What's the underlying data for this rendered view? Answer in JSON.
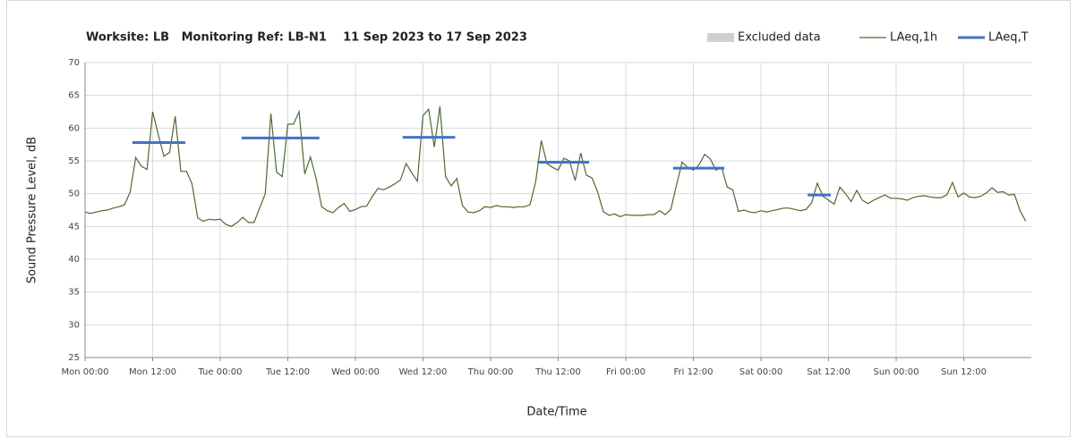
{
  "chart_data": {
    "type": "line",
    "title": "Worksite: LB   Monitoring Ref: LB-N1    11 Sep 2023 to 17 Sep 2023",
    "xlabel": "Date/Time",
    "ylabel": "Sound Pressure Level, dB",
    "xlim": [
      0,
      168
    ],
    "xticks": [
      {
        "value": 0,
        "label": "Mon 00:00"
      },
      {
        "value": 12,
        "label": "Mon 12:00"
      },
      {
        "value": 24,
        "label": "Tue 00:00"
      },
      {
        "value": 36,
        "label": "Tue 12:00"
      },
      {
        "value": 48,
        "label": "Wed 00:00"
      },
      {
        "value": 60,
        "label": "Wed 12:00"
      },
      {
        "value": 72,
        "label": "Thu 00:00"
      },
      {
        "value": 84,
        "label": "Thu 12:00"
      },
      {
        "value": 96,
        "label": "Fri 00:00"
      },
      {
        "value": 108,
        "label": "Fri 12:00"
      },
      {
        "value": 120,
        "label": "Sat 00:00"
      },
      {
        "value": 132,
        "label": "Sat 12:00"
      },
      {
        "value": 144,
        "label": "Sun 00:00"
      },
      {
        "value": 156,
        "label": "Sun 12:00"
      }
    ],
    "ylim": [
      25,
      70
    ],
    "yticks": [
      25,
      30,
      35,
      40,
      45,
      50,
      55,
      60,
      65,
      70
    ],
    "grid": true,
    "legend": "top-right",
    "series": [
      {
        "name": "Excluded data",
        "color": "#d0d0d0",
        "style": "area",
        "values": []
      },
      {
        "name": "LAeq,1h",
        "color": "#4e6b2e",
        "style": "line",
        "x": [
          0,
          1,
          2,
          3,
          4,
          5,
          6,
          7,
          8,
          9,
          10,
          11,
          12,
          13,
          14,
          15,
          16,
          17,
          18,
          19,
          20,
          21,
          22,
          23,
          24,
          25,
          26,
          27,
          28,
          29,
          30,
          31,
          32,
          33,
          34,
          35,
          36,
          37,
          38,
          39,
          40,
          41,
          42,
          43,
          44,
          45,
          46,
          47,
          48,
          49,
          50,
          51,
          52,
          53,
          54,
          55,
          56,
          57,
          58,
          59,
          60,
          61,
          62,
          63,
          64,
          65,
          66,
          67,
          68,
          69,
          70,
          71,
          72,
          73,
          74,
          75,
          76,
          77,
          78,
          79,
          80,
          81,
          82,
          83,
          84,
          85,
          86,
          87,
          88,
          89,
          90,
          91,
          92,
          93,
          94,
          95,
          96,
          97,
          98,
          99,
          100,
          101,
          102,
          103,
          104,
          105,
          106,
          107,
          108,
          109,
          110,
          111,
          112,
          113,
          114,
          115,
          116,
          117,
          118,
          119,
          120,
          121,
          122,
          123,
          124,
          125,
          126,
          127,
          128,
          129,
          130,
          131,
          132,
          133,
          134,
          135,
          136,
          137,
          138,
          139,
          140,
          141,
          142,
          143,
          144,
          145,
          146,
          147,
          148,
          149,
          150,
          151,
          152,
          153,
          154,
          155,
          156,
          157,
          158,
          159,
          160,
          161,
          162,
          163,
          164,
          165,
          166,
          167
        ],
        "values": [
          47.2,
          47,
          47.2,
          47.4,
          47.5,
          47.8,
          48,
          48.3,
          50.2,
          55.5,
          54.2,
          53.7,
          62.5,
          59,
          55.7,
          56.3,
          61.8,
          53.4,
          53.4,
          51.5,
          46.3,
          45.8,
          46.1,
          46,
          46.1,
          45.3,
          45,
          45.6,
          46.4,
          45.6,
          45.6,
          47.8,
          50,
          62.2,
          53.3,
          52.6,
          60.6,
          60.6,
          62.5,
          53,
          55.6,
          52.4,
          48,
          47.4,
          47.1,
          47.9,
          48.5,
          47.3,
          47.6,
          48,
          48.1,
          49.6,
          50.8,
          50.6,
          51,
          51.5,
          52.1,
          54.6,
          53.2,
          51.9,
          61.9,
          62.9,
          57.1,
          63.3,
          52.6,
          51.2,
          52.3,
          48.2,
          47.2,
          47.1,
          47.4,
          48,
          47.9,
          48.2,
          48,
          48,
          47.9,
          48,
          48,
          48.3,
          51.8,
          58.1,
          54.6,
          54,
          53.6,
          55.4,
          55,
          52,
          56.2,
          52.8,
          52.4,
          50.3,
          47.3,
          46.7,
          46.9,
          46.5,
          46.8,
          46.7,
          46.7,
          46.7,
          46.8,
          46.8,
          47.4,
          46.8,
          47.6,
          51.3,
          54.8,
          54,
          53.6,
          54.4,
          56,
          55.3,
          53.6,
          54,
          51,
          50.6,
          47.3,
          47.5,
          47.2,
          47.1,
          47.4,
          47.2,
          47.4,
          47.6,
          47.8,
          47.8,
          47.6,
          47.4,
          47.6,
          48.6,
          51.6,
          49.6,
          49,
          48.4,
          51,
          50,
          48.8,
          50.5,
          49,
          48.5,
          49,
          49.4,
          49.8,
          49.3,
          49.3,
          49.2,
          49,
          49.4,
          49.6,
          49.7,
          49.5,
          49.4,
          49.4,
          49.8,
          51.7,
          49.5,
          50.1,
          49.5,
          49.4,
          49.6,
          50.1,
          50.9,
          50.2,
          50.3,
          49.8,
          49.9,
          47.4,
          45.8
        ]
      },
      {
        "name": "LAeq,T",
        "color": "#4472c4",
        "style": "segments",
        "x_start": [
          8.4,
          27.8,
          56.4,
          80.3,
          104.4,
          128.3
        ],
        "x_end": [
          17.8,
          41.6,
          65.7,
          89.5,
          113.5,
          132.4
        ],
        "values": [
          57.8,
          58.5,
          58.6,
          54.8,
          53.9,
          49.8
        ]
      }
    ]
  }
}
